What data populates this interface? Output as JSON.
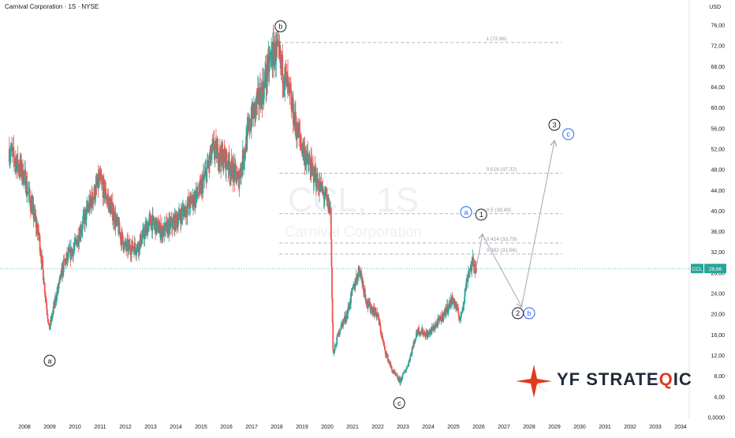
{
  "header": {
    "title": "Carnival Corporation · 1S · NYSE",
    "currency": "USD"
  },
  "watermark": {
    "ticker": "CCL, 1S",
    "name": "Carnival Corporation"
  },
  "logo": {
    "part1": "YF STRATE",
    "accent_letter": "Q",
    "part2": "IC"
  },
  "price_tag": {
    "ticker": "CCL",
    "value": "28,86"
  },
  "colors": {
    "up": "#26a69a",
    "down": "#ef5350",
    "accent_blue": "#2962ff",
    "fib": "#b2b5be",
    "price_line": "#26a69a",
    "logo_red": "#e03a1e"
  },
  "chart_data": {
    "type": "candlestick",
    "y_axis": {
      "range": [
        0,
        78
      ],
      "ticks": [
        "76,00",
        "72,00",
        "68,00",
        "64,00",
        "60,00",
        "56,00",
        "52,00",
        "48,00",
        "44,00",
        "40,00",
        "36,00",
        "32,00",
        "28,00",
        "24,00",
        "20,00",
        "16,00",
        "12,00",
        "8,00",
        "4,00",
        "0,0000"
      ]
    },
    "x_axis": {
      "range": [
        2007.4,
        2034.9
      ],
      "ticks": [
        "2008",
        "2009",
        "2010",
        "2011",
        "2012",
        "2013",
        "2014",
        "2015",
        "2016",
        "2017",
        "2018",
        "2019",
        "2020",
        "2021",
        "2022",
        "2023",
        "2024",
        "2025",
        "2026",
        "2027",
        "2028",
        "2029",
        "2030",
        "2031",
        "2032",
        "2033",
        "2034"
      ]
    },
    "price_path": [
      [
        2007.4,
        52
      ],
      [
        2008.0,
        47
      ],
      [
        2008.6,
        35
      ],
      [
        2009.0,
        17
      ],
      [
        2009.3,
        24
      ],
      [
        2009.6,
        30
      ],
      [
        2010.0,
        33
      ],
      [
        2010.5,
        40
      ],
      [
        2011.0,
        46
      ],
      [
        2011.5,
        40
      ],
      [
        2012.0,
        33
      ],
      [
        2012.5,
        33
      ],
      [
        2013.0,
        38
      ],
      [
        2013.5,
        36
      ],
      [
        2014.0,
        38
      ],
      [
        2014.5,
        41
      ],
      [
        2015.0,
        44
      ],
      [
        2015.5,
        52
      ],
      [
        2016.0,
        50
      ],
      [
        2016.5,
        46
      ],
      [
        2017.0,
        58
      ],
      [
        2017.5,
        64
      ],
      [
        2017.8,
        70
      ],
      [
        2018.0,
        71
      ],
      [
        2018.4,
        65
      ],
      [
        2018.8,
        56
      ],
      [
        2019.2,
        50
      ],
      [
        2019.6,
        46
      ],
      [
        2020.0,
        42
      ],
      [
        2020.15,
        40
      ],
      [
        2020.25,
        12
      ],
      [
        2020.5,
        17
      ],
      [
        2020.8,
        20
      ],
      [
        2021.0,
        24
      ],
      [
        2021.3,
        29
      ],
      [
        2021.6,
        22
      ],
      [
        2022.0,
        20
      ],
      [
        2022.3,
        13
      ],
      [
        2022.6,
        9
      ],
      [
        2022.9,
        7
      ],
      [
        2023.2,
        10
      ],
      [
        2023.6,
        17
      ],
      [
        2024.0,
        16
      ],
      [
        2024.5,
        19
      ],
      [
        2025.0,
        23
      ],
      [
        2025.3,
        19
      ],
      [
        2025.6,
        28
      ],
      [
        2025.8,
        30
      ],
      [
        2025.9,
        29
      ]
    ],
    "fib_levels": [
      {
        "label": "1 (72,66)",
        "value": 72.66
      },
      {
        "label": "0.618 (47,32)",
        "value": 47.32
      },
      {
        "label": "0.5 (39,49)",
        "value": 39.49
      },
      {
        "label": "0.414 (33,79)",
        "value": 33.79
      },
      {
        "label": "0.382 (31,66)",
        "value": 31.66
      }
    ],
    "last_price": 28.86,
    "wave_labels": [
      {
        "text": "a",
        "x": 2009.0,
        "y": 11.0,
        "style": "black"
      },
      {
        "text": "b",
        "x": 2018.15,
        "y": 75.8,
        "style": "black"
      },
      {
        "text": "c",
        "x": 2022.85,
        "y": 2.8,
        "style": "black"
      },
      {
        "text": "a",
        "x": 2025.5,
        "y": 39.8,
        "style": "blue"
      },
      {
        "text": "1",
        "x": 2026.1,
        "y": 39.3,
        "style": "black"
      },
      {
        "text": "2",
        "x": 2027.55,
        "y": 20.2,
        "style": "black"
      },
      {
        "text": "b",
        "x": 2028.0,
        "y": 20.2,
        "style": "blue"
      },
      {
        "text": "3",
        "x": 2029.0,
        "y": 56.7,
        "style": "black"
      },
      {
        "text": "c",
        "x": 2029.55,
        "y": 54.9,
        "style": "blue"
      }
    ],
    "projection": [
      {
        "x": 2025.9,
        "y": 29.0
      },
      {
        "x": 2026.15,
        "y": 35.4
      },
      {
        "x": 2027.7,
        "y": 21.5
      },
      {
        "x": 2029.0,
        "y": 53.5
      }
    ]
  }
}
